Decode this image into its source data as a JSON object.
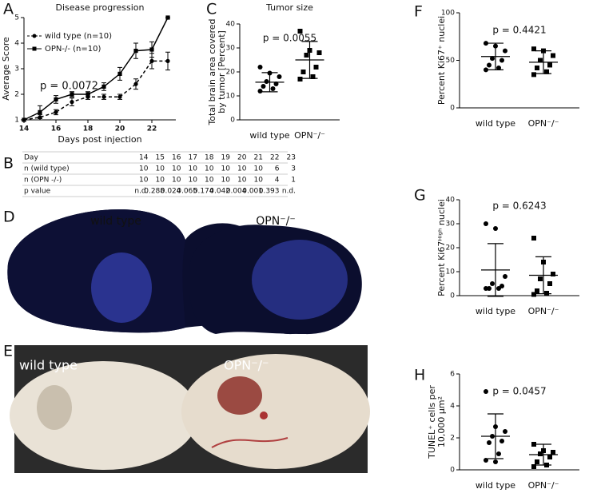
{
  "chart_data": [
    {
      "type": "line",
      "panel": "A",
      "title": "Disease progression",
      "xlabel": "Days post injection",
      "ylabel": [
        "Average Score"
      ],
      "annotation": "p = 0.0072",
      "x": [
        14,
        15,
        16,
        17,
        18,
        19,
        20,
        21,
        22,
        23
      ],
      "xlim": [
        14,
        23.5
      ],
      "xticks": [
        14,
        16,
        18,
        20,
        22
      ],
      "ylim": [
        1,
        5
      ],
      "yticks": [
        1,
        2,
        3,
        4,
        5
      ],
      "series": [
        {
          "name": "wild type (n=10)",
          "color": "#000000",
          "marker": "circle",
          "dashed": true,
          "values": [
            1,
            1.1,
            1.3,
            1.7,
            1.9,
            1.9,
            1.9,
            2.4,
            3.3,
            3.3
          ],
          "errors": [
            0,
            0.1,
            0.1,
            0.15,
            0.1,
            0.1,
            0.1,
            0.2,
            0.3,
            0.35
          ]
        },
        {
          "name": "OPN-/- (n=10)",
          "color": "#000000",
          "marker": "square",
          "dashed": false,
          "values": [
            1,
            1.3,
            1.8,
            2.0,
            2.0,
            2.3,
            2.8,
            3.7,
            3.75,
            5
          ],
          "errors": [
            0,
            0.25,
            0.15,
            0.1,
            0.1,
            0.15,
            0.25,
            0.3,
            0.3,
            0
          ]
        }
      ]
    },
    {
      "type": "dot",
      "panel": "C",
      "title": "Tumor size",
      "ylabel": [
        "Total brain area covered",
        "by tumor [Percent]"
      ],
      "annotation": "p = 0.0055",
      "categories": [
        "wild type",
        "OPN⁻/⁻"
      ],
      "ylim": [
        0,
        40
      ],
      "yticks": [
        0,
        10,
        20,
        30,
        40
      ],
      "groups": [
        {
          "marker": "circle",
          "values": [
            22,
            19.5,
            18,
            16,
            15,
            14,
            13,
            12
          ],
          "mean": 15.7,
          "sd": 4
        },
        {
          "marker": "square",
          "values": [
            37,
            29,
            28,
            27,
            22,
            20,
            18,
            17
          ],
          "mean": 25,
          "sd": 7.7
        }
      ]
    },
    {
      "type": "dot",
      "panel": "F",
      "ylabel": [
        "Percent Ki67⁺ nuclei"
      ],
      "annotation": "p = 0.4421",
      "categories": [
        "wild type",
        "OPN⁻/⁻"
      ],
      "ylim": [
        0,
        100
      ],
      "yticks": [
        0,
        50,
        100
      ],
      "groups": [
        {
          "marker": "circle",
          "values": [
            68,
            65,
            60,
            52,
            50,
            45,
            42,
            40
          ],
          "mean": 54,
          "sd": 14
        },
        {
          "marker": "square",
          "values": [
            62,
            60,
            55,
            50,
            45,
            42,
            38,
            35
          ],
          "mean": 48,
          "sd": 12
        }
      ]
    },
    {
      "type": "dot",
      "panel": "G",
      "ylabel": [
        "Percent Ki67ᴴⁱᵍʰ nuclei"
      ],
      "annotation": "p = 0.6243",
      "categories": [
        "wild type",
        "OPN⁻/⁻"
      ],
      "ylim": [
        0,
        40
      ],
      "yticks": [
        0,
        10,
        20,
        30,
        40
      ],
      "groups": [
        {
          "marker": "circle",
          "values": [
            30,
            28,
            8,
            5,
            4,
            3,
            3,
            3
          ],
          "mean": 10.7,
          "sd": 11
        },
        {
          "marker": "square",
          "values": [
            24,
            14,
            9,
            7,
            5,
            2,
            1,
            0.5
          ],
          "mean": 8.5,
          "sd": 7.7
        }
      ]
    },
    {
      "type": "dot",
      "panel": "H",
      "ylabel": [
        "TUNEL⁺ cells per",
        "10,000 µm²"
      ],
      "annotation": "p = 0.0457",
      "categories": [
        "wild type",
        "OPN⁻/⁻"
      ],
      "ylim": [
        0,
        6
      ],
      "yticks": [
        0,
        2,
        4,
        6
      ],
      "groups": [
        {
          "marker": "circle",
          "values": [
            4.9,
            2.7,
            2.4,
            2.1,
            1.8,
            1.7,
            1.0,
            0.6,
            0.5
          ],
          "mean": 2.1,
          "sd": 1.4
        },
        {
          "marker": "square",
          "values": [
            1.6,
            1.2,
            1.1,
            1.0,
            0.8,
            0.5,
            0.3,
            0.2
          ],
          "mean": 0.95,
          "sd": 0.65
        }
      ]
    }
  ],
  "table": {
    "panel": "B",
    "rows": [
      [
        "Day",
        "14",
        "15",
        "16",
        "17",
        "18",
        "19",
        "20",
        "21",
        "22",
        "23"
      ],
      [
        "n (wild type)",
        "10",
        "10",
        "10",
        "10",
        "10",
        "10",
        "10",
        "10",
        "6",
        "3"
      ],
      [
        "n (OPN -/-)",
        "10",
        "10",
        "10",
        "10",
        "10",
        "10",
        "10",
        "10",
        "4",
        "1"
      ],
      [
        "p value",
        "n.d.",
        "0.288",
        "0.024",
        "0.065",
        "0.174",
        "0.042",
        "0.004",
        "0.001",
        "0.393",
        "n.d."
      ]
    ]
  },
  "images": [
    {
      "panel": "D",
      "captions": [
        "wild type",
        "OPN⁻/⁻"
      ]
    },
    {
      "panel": "E",
      "captions": [
        "wild type",
        "OPN⁻/⁻"
      ]
    }
  ]
}
